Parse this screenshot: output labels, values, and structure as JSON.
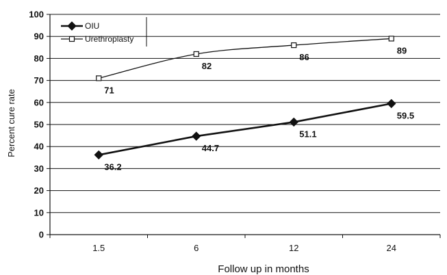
{
  "chart_data": {
    "type": "line",
    "categories": [
      "1.5",
      "6",
      "12",
      "24"
    ],
    "series": [
      {
        "name": "OIU",
        "values": [
          36.2,
          44.7,
          51.1,
          59.5
        ],
        "labels": [
          "36.2",
          "44.7",
          "51.1",
          "59.5"
        ],
        "color": "#111111",
        "marker": "filled-diamond"
      },
      {
        "name": "Urethroplasty",
        "values": [
          71,
          82,
          86,
          89
        ],
        "labels": [
          "71",
          "82",
          "86",
          "89"
        ],
        "color": "#111111",
        "marker": "open-square"
      }
    ],
    "title": "",
    "xlabel": "Follow up in months",
    "ylabel": "Percent cure rate",
    "ylim": [
      0,
      100
    ],
    "yticks": [
      "0",
      "10",
      "20",
      "30",
      "40",
      "50",
      "60",
      "70",
      "80",
      "90",
      "100"
    ],
    "grid": "horizontal",
    "legend": "top-left"
  }
}
